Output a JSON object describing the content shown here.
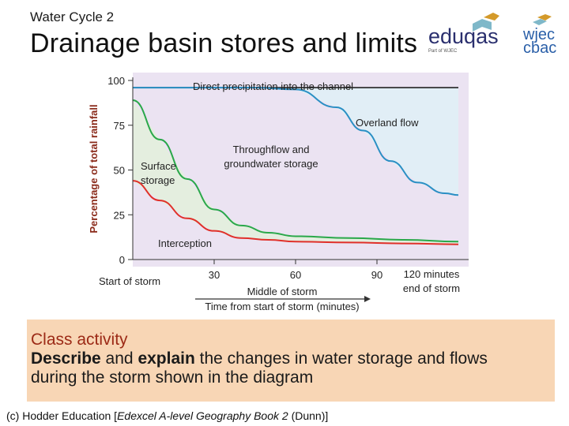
{
  "header": {
    "supertitle": "Water Cycle 2",
    "title": "Drainage basin stores and limits"
  },
  "logos": {
    "eduqas_text": "eduqas",
    "eduqas_sub": "Part of WJEC",
    "wjec_line1": "wjec",
    "wjec_line2": "cbac"
  },
  "diagram": {
    "ylabel": "Percentage of total rainfall",
    "y_ticks": [
      "100",
      "75",
      "50",
      "25",
      "0"
    ],
    "x_start": "Start of storm",
    "x_ticks": [
      "30",
      "60",
      "90"
    ],
    "x_end_line1": "120 minutes",
    "x_end_line2": "end of storm",
    "middle": "Middle of storm",
    "arrow_label": "Time from start of storm (minutes)",
    "regions": {
      "direct": "Direct precipitation into the channel",
      "overland": "Overland flow",
      "throughflow_line1": "Throughflow and",
      "throughflow_line2": "groundwater storage",
      "surface_line1": "Surface",
      "surface_line2": "storage",
      "interception": "Interception"
    },
    "colors": {
      "background": "#ebe3f2",
      "overland_line": "#2a8fc4",
      "surface_line": "#2aa84a",
      "interception_line": "#e0302a",
      "direct_line": "#222222"
    },
    "series": [
      {
        "key": "direct",
        "x": [
          0,
          120
        ],
        "y": [
          96,
          96
        ]
      },
      {
        "key": "overland",
        "x": [
          0,
          45,
          60,
          75,
          85,
          95,
          105,
          115,
          120
        ],
        "y": [
          96,
          96,
          95,
          85,
          72,
          55,
          43,
          37,
          36
        ]
      },
      {
        "key": "surface",
        "x": [
          0,
          10,
          20,
          30,
          40,
          50,
          60,
          80,
          100,
          120
        ],
        "y": [
          89,
          67,
          45,
          28,
          19,
          15,
          13,
          12,
          11,
          10
        ]
      },
      {
        "key": "interception",
        "x": [
          0,
          10,
          20,
          30,
          40,
          50,
          60,
          80,
          100,
          120
        ],
        "y": [
          44,
          33,
          23,
          16,
          12,
          11,
          10,
          9.5,
          9,
          8.5
        ]
      }
    ]
  },
  "activity": {
    "heading": "Class activity",
    "describe": "Describe",
    "and1": " and ",
    "explain": "explain",
    "rest": " the changes in water storage and flows during the storm shown in the diagram"
  },
  "credit": {
    "prefix": "(c) Hodder Education [",
    "book": "Edexcel  A-level Geography Book 2",
    "suffix": " (Dunn)]"
  }
}
